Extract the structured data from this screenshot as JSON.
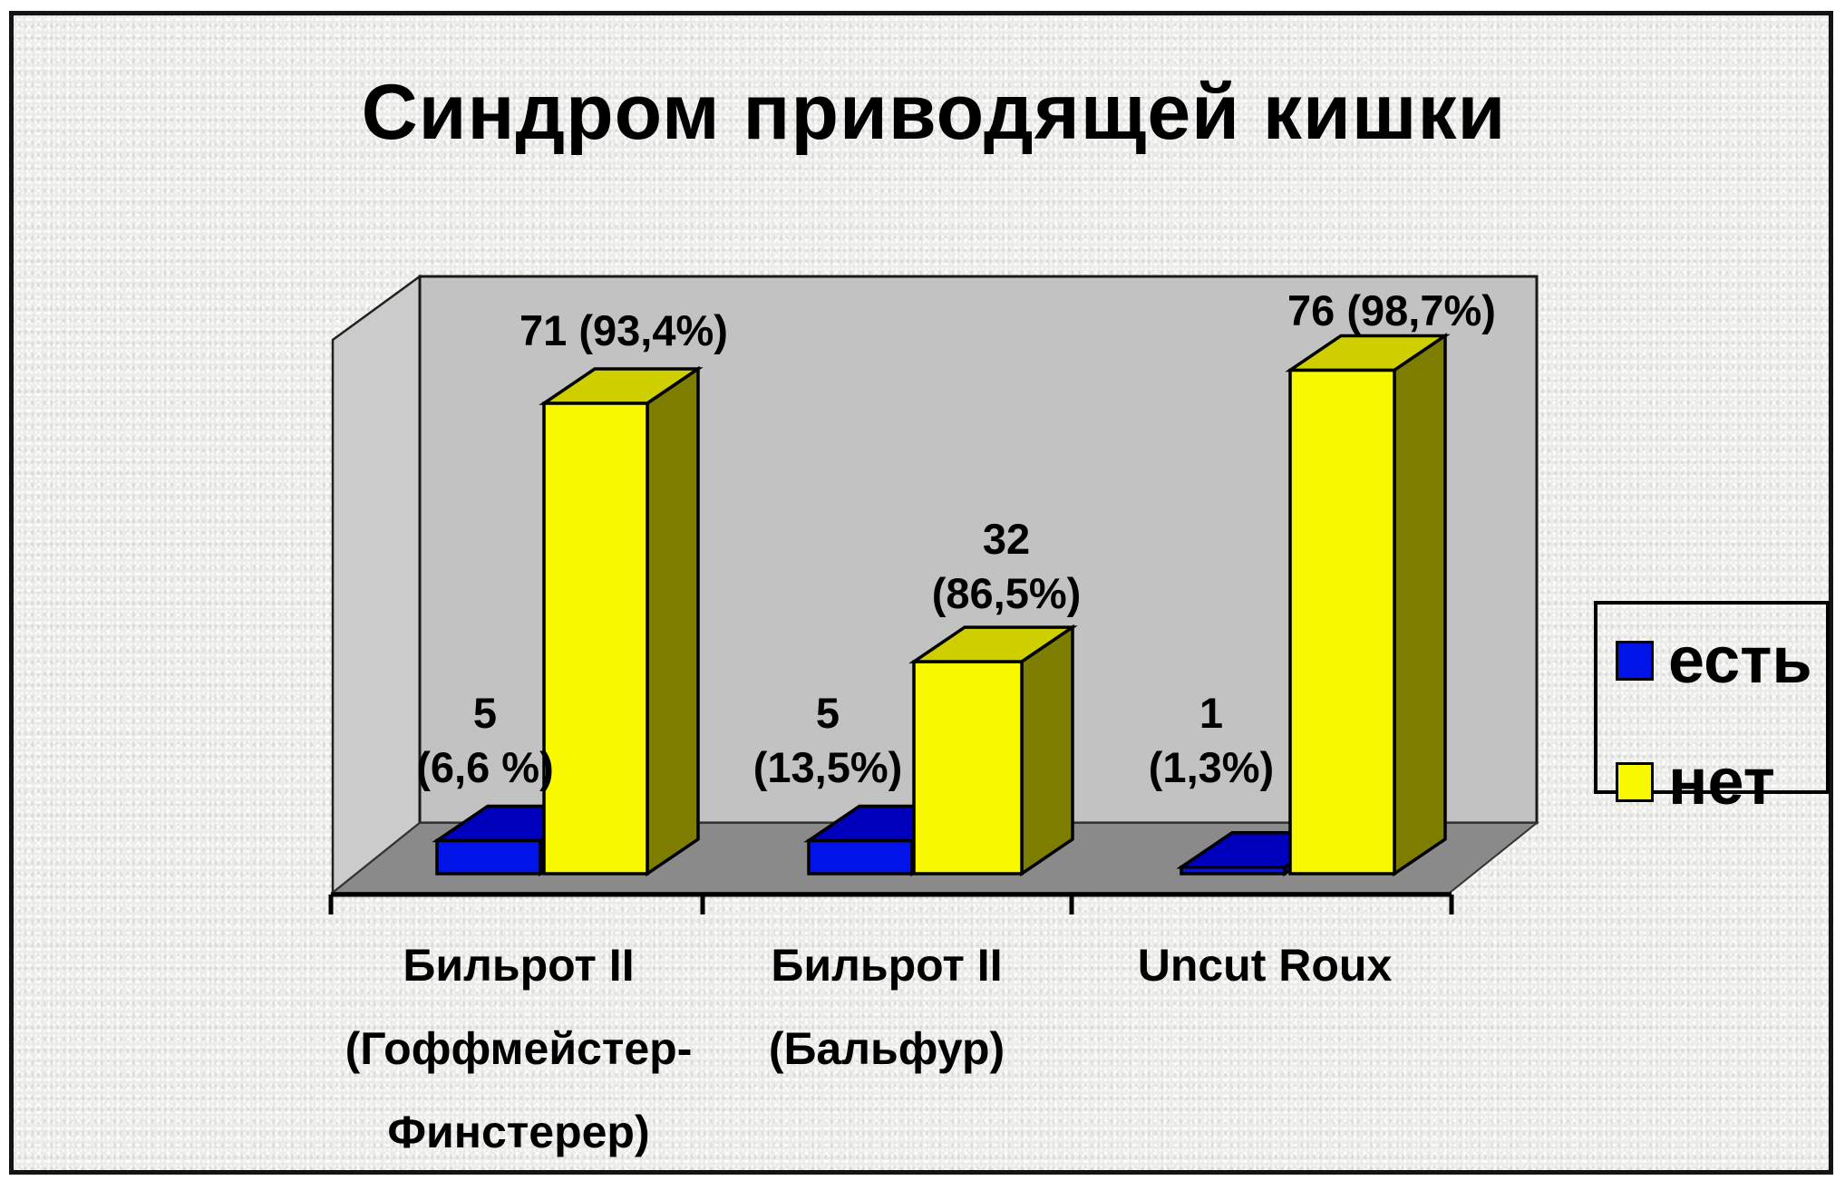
{
  "title": "Синдром приводящей кишки",
  "colors": {
    "canvas_bg": "#ebebe9",
    "back_wall": "#c2c2c2",
    "side_wall": "#cbcbcb",
    "floor": "#8a8a8a",
    "axis": "#000000"
  },
  "chart_data": {
    "type": "bar",
    "projection": "3d",
    "title": "Синдром приводящей кишки",
    "categories": [
      "Бильрот II (Гоффмейстер-Финстерер)",
      "Бильрот II (Бальфур)",
      "Uncut Roux"
    ],
    "category_lines": [
      [
        "Бильрот II",
        "(Гоффмейстер-",
        "Финстерер)"
      ],
      [
        "Бильрот II",
        "(Бальфур)"
      ],
      [
        "Uncut Roux"
      ]
    ],
    "series": [
      {
        "name": "есть",
        "color": "#0014e8",
        "face_colors": {
          "front": "#0014e8",
          "top": "#0000bc",
          "side": "#000080"
        },
        "values": [
          5,
          5,
          1
        ],
        "percent_labels": [
          "(6,6 %)",
          "(13,5%)",
          "(1,3%)"
        ]
      },
      {
        "name": "нет",
        "color": "#f8f800",
        "face_colors": {
          "front": "#f8f800",
          "top": "#cfcf00",
          "side": "#7d7d00"
        },
        "values": [
          71,
          32,
          76
        ],
        "percent_labels": [
          "(93,4%)",
          "(86,5%)",
          "(98,7%)"
        ]
      }
    ],
    "ylim": [
      0,
      80
    ],
    "grid": false,
    "value_axis_visible": false,
    "legend_position": "right"
  }
}
